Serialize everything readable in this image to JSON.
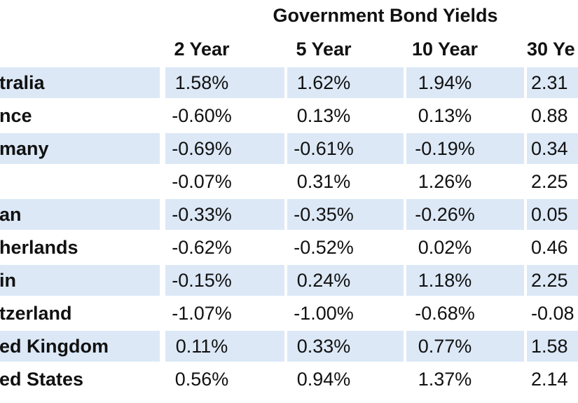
{
  "table": {
    "title": "Government Bond Yields",
    "header": [
      "2 Year",
      "5 Year",
      "10 Year",
      "30 Ye"
    ],
    "rows": [
      [
        "tralia",
        "1.58%",
        "1.62%",
        "1.94%",
        "2.31"
      ],
      [
        "nce",
        "-0.60%",
        "0.13%",
        "0.13%",
        "0.88"
      ],
      [
        "many",
        "-0.69%",
        "-0.61%",
        "-0.19%",
        "0.34"
      ],
      [
        null,
        "-0.07%",
        "0.31%",
        "1.26%",
        "2.25"
      ],
      [
        "an",
        "-0.33%",
        "-0.35%",
        "-0.26%",
        "0.05"
      ],
      [
        "herlands",
        "-0.62%",
        "-0.52%",
        "0.02%",
        "0.46"
      ],
      [
        "in",
        "-0.15%",
        "0.24%",
        "1.18%",
        "2.25"
      ],
      [
        "tzerland",
        "-1.07%",
        "-1.00%",
        "-0.68%",
        "-0.08"
      ],
      [
        "ed Kingdom",
        "0.11%",
        "0.33%",
        "0.77%",
        "1.58"
      ],
      [
        "ed States",
        "0.56%",
        "0.94%",
        "1.37%",
        "2.14"
      ]
    ]
  }
}
